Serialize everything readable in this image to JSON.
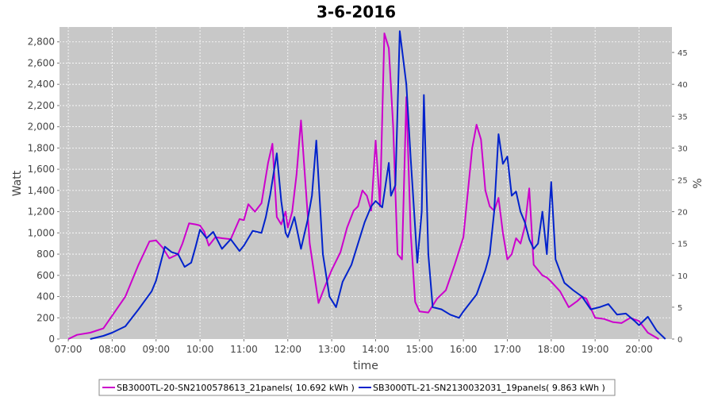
{
  "chart_data": {
    "type": "line",
    "title": "3-6-2016",
    "xlabel": "time",
    "ylabel": "Watt",
    "y2label": "%",
    "x_ticks": [
      "07:00",
      "08:00",
      "09:00",
      "10:00",
      "11:00",
      "12:00",
      "13:00",
      "14:00",
      "15:00",
      "16:00",
      "17:00",
      "18:00",
      "19:00",
      "20:00"
    ],
    "y_ticks": [
      "0",
      "200",
      "400",
      "600",
      "800",
      "1,000",
      "1,200",
      "1,400",
      "1,600",
      "1,800",
      "2,000",
      "2,200",
      "2,400",
      "2,600",
      "2,800"
    ],
    "y2_ticks": [
      "0",
      "5",
      "10",
      "15",
      "20",
      "25",
      "30",
      "35",
      "40",
      "45"
    ],
    "ylim": [
      0,
      2940
    ],
    "y2lim": [
      0,
      49
    ],
    "xlim_hours": [
      6.8,
      20.75
    ],
    "grid": true,
    "legend_position": "bottom",
    "series": [
      {
        "name": "SB3000TL-20-SN2100578613_21panels( 10.692 kWh )",
        "color": "#cc00cc",
        "x": [
          7.0,
          7.2,
          7.5,
          7.8,
          8.0,
          8.3,
          8.6,
          8.85,
          9.0,
          9.15,
          9.3,
          9.5,
          9.6,
          9.75,
          9.9,
          10.0,
          10.1,
          10.2,
          10.35,
          10.5,
          10.7,
          10.9,
          11.0,
          11.1,
          11.25,
          11.4,
          11.55,
          11.65,
          11.75,
          11.85,
          11.95,
          12.0,
          12.1,
          12.2,
          12.3,
          12.5,
          12.7,
          12.85,
          13.0,
          13.2,
          13.35,
          13.5,
          13.6,
          13.7,
          13.8,
          13.9,
          14.0,
          14.1,
          14.2,
          14.3,
          14.4,
          14.5,
          14.6,
          14.7,
          14.8,
          14.9,
          15.0,
          15.2,
          15.4,
          15.6,
          15.8,
          16.0,
          16.2,
          16.3,
          16.4,
          16.5,
          16.6,
          16.7,
          16.8,
          16.9,
          17.0,
          17.1,
          17.2,
          17.3,
          17.4,
          17.5,
          17.6,
          17.7,
          17.8,
          17.9,
          18.0,
          18.2,
          18.4,
          18.5,
          18.6,
          18.7,
          18.8,
          19.0,
          19.2,
          19.4,
          19.6,
          19.8,
          20.0,
          20.2,
          20.45
        ],
        "y": [
          0,
          40,
          60,
          100,
          220,
          400,
          700,
          920,
          930,
          860,
          760,
          800,
          900,
          1090,
          1080,
          1070,
          1010,
          880,
          960,
          950,
          940,
          1130,
          1120,
          1270,
          1200,
          1280,
          1660,
          1840,
          1150,
          1080,
          1200,
          1050,
          1200,
          1550,
          2060,
          900,
          340,
          500,
          650,
          820,
          1050,
          1210,
          1250,
          1400,
          1350,
          1210,
          1870,
          1250,
          2880,
          2740,
          2000,
          800,
          750,
          2280,
          1000,
          350,
          260,
          250,
          380,
          460,
          700,
          960,
          1800,
          2020,
          1880,
          1400,
          1250,
          1210,
          1330,
          1000,
          750,
          800,
          950,
          900,
          1060,
          1420,
          700,
          650,
          600,
          580,
          540,
          450,
          300,
          330,
          360,
          400,
          380,
          200,
          190,
          160,
          150,
          200,
          170,
          60,
          0
        ]
      },
      {
        "name": "SB3000TL-21-SN2130032031_19panels( 9.863 kWh )",
        "color": "#0022cc",
        "x": [
          7.5,
          7.8,
          8.0,
          8.3,
          8.6,
          8.9,
          9.0,
          9.2,
          9.35,
          9.5,
          9.65,
          9.8,
          9.9,
          10.0,
          10.15,
          10.3,
          10.5,
          10.7,
          10.9,
          11.0,
          11.2,
          11.4,
          11.5,
          11.6,
          11.75,
          11.85,
          11.95,
          12.0,
          12.15,
          12.3,
          12.45,
          12.55,
          12.65,
          12.8,
          12.95,
          13.1,
          13.25,
          13.45,
          13.6,
          13.75,
          13.9,
          14.0,
          14.15,
          14.3,
          14.35,
          14.45,
          14.55,
          14.7,
          14.8,
          14.9,
          14.95,
          15.05,
          15.1,
          15.2,
          15.3,
          15.5,
          15.7,
          15.9,
          16.0,
          16.3,
          16.5,
          16.6,
          16.7,
          16.8,
          16.9,
          17.0,
          17.1,
          17.2,
          17.3,
          17.4,
          17.5,
          17.6,
          17.7,
          17.8,
          17.9,
          18.0,
          18.1,
          18.3,
          18.5,
          18.7,
          18.9,
          19.1,
          19.3,
          19.5,
          19.7,
          19.9,
          20.0,
          20.2,
          20.4,
          20.6
        ],
        "y": [
          0,
          30,
          60,
          120,
          280,
          450,
          550,
          870,
          820,
          800,
          680,
          720,
          870,
          1030,
          950,
          1010,
          850,
          940,
          830,
          880,
          1020,
          1000,
          1150,
          1360,
          1750,
          1300,
          1000,
          960,
          1150,
          850,
          1120,
          1350,
          1870,
          800,
          400,
          300,
          540,
          700,
          900,
          1100,
          1250,
          1300,
          1240,
          1660,
          1350,
          1450,
          2900,
          2400,
          1700,
          1050,
          720,
          1200,
          2300,
          800,
          300,
          280,
          230,
          200,
          260,
          420,
          650,
          800,
          1200,
          1930,
          1650,
          1720,
          1350,
          1390,
          1200,
          1100,
          940,
          850,
          900,
          1200,
          800,
          1480,
          750,
          530,
          460,
          400,
          280,
          300,
          330,
          230,
          240,
          170,
          130,
          210,
          80,
          0
        ]
      }
    ]
  }
}
